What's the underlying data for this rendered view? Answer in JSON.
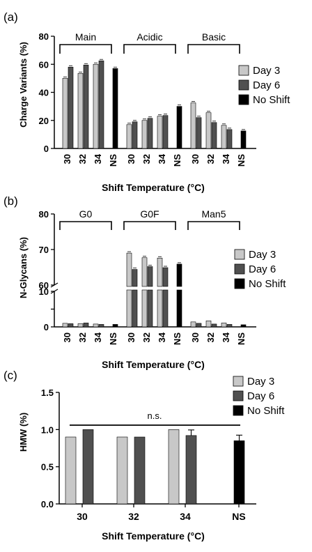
{
  "legend_labels": [
    "Day 3",
    "Day 6",
    "No Shift"
  ],
  "colors": {
    "day3": "#c8c8c8",
    "day6": "#505050",
    "noshift": "#000000"
  },
  "chart_data": [
    {
      "panel": "(a)",
      "type": "bar",
      "ylabel": "Charge Variants (%)",
      "xlabel": "Shift Temperature (°C)",
      "ylim": [
        0,
        80
      ],
      "yticks": [
        "0",
        "20",
        "40",
        "60",
        "80"
      ],
      "legend": "right",
      "groups": [
        {
          "name": "Main",
          "categories": [
            "30",
            "32",
            "34",
            "NS"
          ],
          "day3": [
            50,
            53.5,
            60,
            null
          ],
          "day6": [
            58,
            59.5,
            62.5,
            null
          ],
          "noshift": [
            null,
            null,
            null,
            57
          ]
        },
        {
          "name": "Acidic",
          "categories": [
            "30",
            "32",
            "34",
            "NS"
          ],
          "day3": [
            17,
            20,
            23,
            null
          ],
          "day6": [
            19,
            21.5,
            23.5,
            null
          ],
          "noshift": [
            null,
            null,
            null,
            30
          ]
        },
        {
          "name": "Basic",
          "categories": [
            "30",
            "32",
            "34",
            "NS"
          ],
          "day3": [
            32.5,
            25.5,
            16.5,
            null
          ],
          "day6": [
            22,
            18.5,
            13.5,
            null
          ],
          "noshift": [
            null,
            null,
            null,
            12.5
          ]
        }
      ]
    },
    {
      "panel": "(b)",
      "type": "bar",
      "ylabel": "N-Glycans (%)",
      "xlabel": "Shift Temperature (°C)",
      "broken_axis": true,
      "ylim_lower": [
        0,
        10
      ],
      "ylim_upper": [
        60,
        80
      ],
      "yticks_lower": [
        "0",
        "5",
        "10"
      ],
      "yticks_upper": [
        "60",
        "70",
        "80"
      ],
      "legend": "right",
      "groups": [
        {
          "name": "G0",
          "categories": [
            "30",
            "32",
            "34",
            "NS"
          ],
          "day3": [
            1.0,
            0.9,
            0.8,
            null
          ],
          "day6": [
            0.9,
            1.1,
            0.7,
            null
          ],
          "noshift": [
            null,
            null,
            null,
            0.7
          ]
        },
        {
          "name": "G0F",
          "categories": [
            "30",
            "32",
            "34",
            "NS"
          ],
          "day3": [
            69,
            67.7,
            67.6,
            null
          ],
          "day6": [
            64.4,
            65.2,
            64.9,
            null
          ],
          "noshift": [
            null,
            null,
            null,
            65.9
          ]
        },
        {
          "name": "Man5",
          "categories": [
            "30",
            "32",
            "34",
            "NS"
          ],
          "day3": [
            1.4,
            1.7,
            1.1,
            null
          ],
          "day6": [
            1.0,
            0.8,
            0.7,
            null
          ],
          "noshift": [
            null,
            null,
            null,
            0.6
          ]
        }
      ]
    },
    {
      "panel": "(c)",
      "type": "bar",
      "ylabel": "HMW (%)",
      "xlabel": "Shift Temperature (°C)",
      "ylim": [
        0,
        1.5
      ],
      "yticks": [
        "0.0",
        "0.5",
        "1.0",
        "1.5"
      ],
      "legend": "top-right",
      "annotation": "n.s.",
      "categories": [
        "30",
        "32",
        "34",
        "NS"
      ],
      "day3": [
        0.9,
        0.9,
        1.0,
        null
      ],
      "day6": [
        1.0,
        0.9,
        0.92,
        null
      ],
      "noshift": [
        null,
        null,
        null,
        0.85
      ]
    }
  ]
}
